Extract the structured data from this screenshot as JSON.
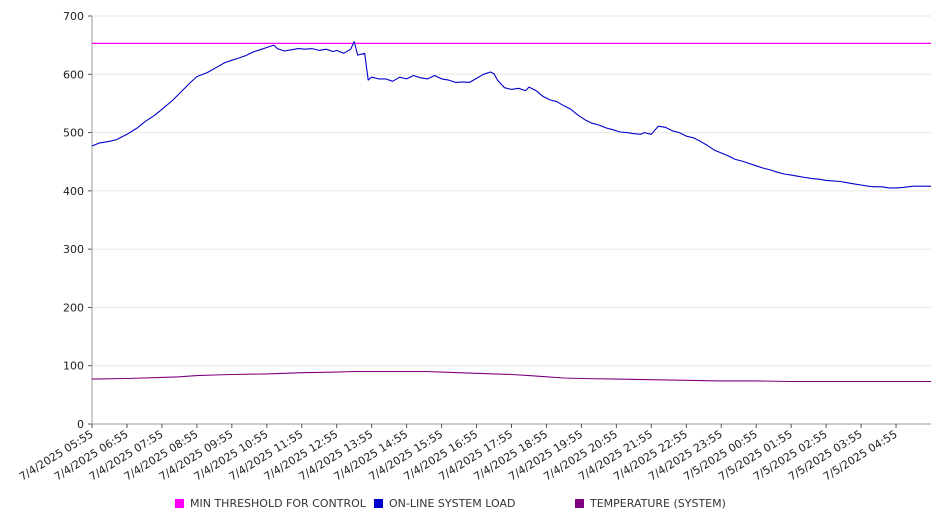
{
  "chart_data": {
    "type": "line",
    "title": "",
    "xlabel": "",
    "ylabel": "",
    "ylim": [
      0,
      700
    ],
    "yticks": [
      "0",
      "100",
      "200",
      "300",
      "400",
      "500",
      "600",
      "700"
    ],
    "x_labels": [
      "7/4/2025 05:55",
      "7/4/2025 06:55",
      "7/4/2025 07:55",
      "7/4/2025 08:55",
      "7/4/2025 09:55",
      "7/4/2025 10:55",
      "7/4/2025 11:55",
      "7/4/2025 12:55",
      "7/4/2025 13:55",
      "7/4/2025 14:55",
      "7/4/2025 15:55",
      "7/4/2025 16:55",
      "7/4/2025 17:55",
      "7/4/2025 18:55",
      "7/4/2025 19:55",
      "7/4/2025 20:55",
      "7/4/2025 21:55",
      "7/4/2025 22:55",
      "7/4/2025 23:55",
      "7/5/2025 00:55",
      "7/5/2025 01:55",
      "7/5/2025 02:55",
      "7/5/2025 03:55",
      "7/5/2025 04:55"
    ],
    "grid": true,
    "legend_position": "bottom",
    "series": [
      {
        "name": "MIN THRESHOLD FOR CONTROL",
        "color": "#ff00ff",
        "points": [
          [
            0,
            653
          ],
          [
            24,
            653
          ]
        ]
      },
      {
        "name": "ON-LINE SYSTEM LOAD",
        "color": "#0000cc",
        "points": [
          [
            0,
            477
          ],
          [
            0.2,
            482
          ],
          [
            0.5,
            485
          ],
          [
            0.7,
            488
          ],
          [
            1.0,
            497
          ],
          [
            1.3,
            508
          ],
          [
            1.5,
            518
          ],
          [
            1.8,
            530
          ],
          [
            2.0,
            540
          ],
          [
            2.3,
            555
          ],
          [
            2.5,
            567
          ],
          [
            2.8,
            585
          ],
          [
            3.0,
            596
          ],
          [
            3.3,
            603
          ],
          [
            3.6,
            613
          ],
          [
            3.8,
            620
          ],
          [
            4.0,
            624
          ],
          [
            4.2,
            628
          ],
          [
            4.4,
            632
          ],
          [
            4.6,
            638
          ],
          [
            4.8,
            642
          ],
          [
            5.0,
            646
          ],
          [
            5.2,
            650
          ],
          [
            5.3,
            644
          ],
          [
            5.5,
            640
          ],
          [
            5.7,
            642
          ],
          [
            5.9,
            644
          ],
          [
            6.1,
            643
          ],
          [
            6.3,
            644
          ],
          [
            6.5,
            641
          ],
          [
            6.7,
            643
          ],
          [
            6.9,
            639
          ],
          [
            7.0,
            641
          ],
          [
            7.2,
            636
          ],
          [
            7.4,
            643
          ],
          [
            7.5,
            656
          ],
          [
            7.6,
            633
          ],
          [
            7.8,
            636
          ],
          [
            7.9,
            590
          ],
          [
            8.0,
            595
          ],
          [
            8.2,
            592
          ],
          [
            8.4,
            592
          ],
          [
            8.6,
            588
          ],
          [
            8.8,
            595
          ],
          [
            9.0,
            592
          ],
          [
            9.2,
            598
          ],
          [
            9.4,
            594
          ],
          [
            9.6,
            592
          ],
          [
            9.8,
            598
          ],
          [
            10.0,
            592
          ],
          [
            10.2,
            590
          ],
          [
            10.4,
            586
          ],
          [
            10.6,
            587
          ],
          [
            10.8,
            586
          ],
          [
            11.0,
            593
          ],
          [
            11.2,
            600
          ],
          [
            11.4,
            604
          ],
          [
            11.5,
            601
          ],
          [
            11.6,
            590
          ],
          [
            11.8,
            577
          ],
          [
            12.0,
            574
          ],
          [
            12.2,
            576
          ],
          [
            12.4,
            572
          ],
          [
            12.5,
            578
          ],
          [
            12.7,
            572
          ],
          [
            12.9,
            562
          ],
          [
            13.1,
            556
          ],
          [
            13.3,
            553
          ],
          [
            13.5,
            546
          ],
          [
            13.7,
            540
          ],
          [
            13.9,
            530
          ],
          [
            14.1,
            522
          ],
          [
            14.3,
            516
          ],
          [
            14.5,
            513
          ],
          [
            14.7,
            508
          ],
          [
            14.9,
            505
          ],
          [
            15.1,
            501
          ],
          [
            15.3,
            500
          ],
          [
            15.5,
            498
          ],
          [
            15.7,
            497
          ],
          [
            15.8,
            500
          ],
          [
            16.0,
            497
          ],
          [
            16.2,
            511
          ],
          [
            16.4,
            509
          ],
          [
            16.6,
            503
          ],
          [
            16.8,
            500
          ],
          [
            17.0,
            494
          ],
          [
            17.2,
            491
          ],
          [
            17.4,
            485
          ],
          [
            17.6,
            478
          ],
          [
            17.8,
            470
          ],
          [
            18.0,
            465
          ],
          [
            18.2,
            460
          ],
          [
            18.4,
            454
          ],
          [
            18.6,
            451
          ],
          [
            18.8,
            447
          ],
          [
            19.0,
            443
          ],
          [
            19.2,
            439
          ],
          [
            19.4,
            436
          ],
          [
            19.6,
            432
          ],
          [
            19.8,
            429
          ],
          [
            20.0,
            427
          ],
          [
            20.2,
            425
          ],
          [
            20.4,
            423
          ],
          [
            20.6,
            421
          ],
          [
            20.8,
            420
          ],
          [
            21.0,
            418
          ],
          [
            21.2,
            417
          ],
          [
            21.4,
            416
          ],
          [
            21.6,
            414
          ],
          [
            21.8,
            412
          ],
          [
            22.0,
            410
          ],
          [
            22.2,
            408
          ],
          [
            22.4,
            407
          ],
          [
            22.6,
            407
          ],
          [
            22.8,
            405
          ],
          [
            23.0,
            405
          ],
          [
            23.2,
            406
          ],
          [
            23.5,
            408
          ],
          [
            23.8,
            408
          ],
          [
            24.0,
            408
          ]
        ]
      },
      {
        "name": "TEMPERATURE (SYSTEM)",
        "color": "#800080",
        "points": [
          [
            0,
            77
          ],
          [
            1,
            78
          ],
          [
            2,
            80
          ],
          [
            2.5,
            81
          ],
          [
            3,
            83
          ],
          [
            3.5,
            84
          ],
          [
            4,
            85
          ],
          [
            5,
            86
          ],
          [
            5.5,
            87
          ],
          [
            6,
            88
          ],
          [
            7,
            89
          ],
          [
            7.5,
            90
          ],
          [
            8,
            90
          ],
          [
            9,
            90
          ],
          [
            9.5,
            90
          ],
          [
            10,
            89
          ],
          [
            10.5,
            88
          ],
          [
            11,
            87
          ],
          [
            11.5,
            86
          ],
          [
            12,
            85
          ],
          [
            12.5,
            83
          ],
          [
            13,
            81
          ],
          [
            13.5,
            79
          ],
          [
            14,
            78
          ],
          [
            15,
            77
          ],
          [
            16,
            76
          ],
          [
            17,
            75
          ],
          [
            18,
            74
          ],
          [
            19,
            74
          ],
          [
            20,
            73
          ],
          [
            21,
            73
          ],
          [
            22,
            73
          ],
          [
            23,
            73
          ],
          [
            24,
            73
          ]
        ]
      }
    ]
  }
}
